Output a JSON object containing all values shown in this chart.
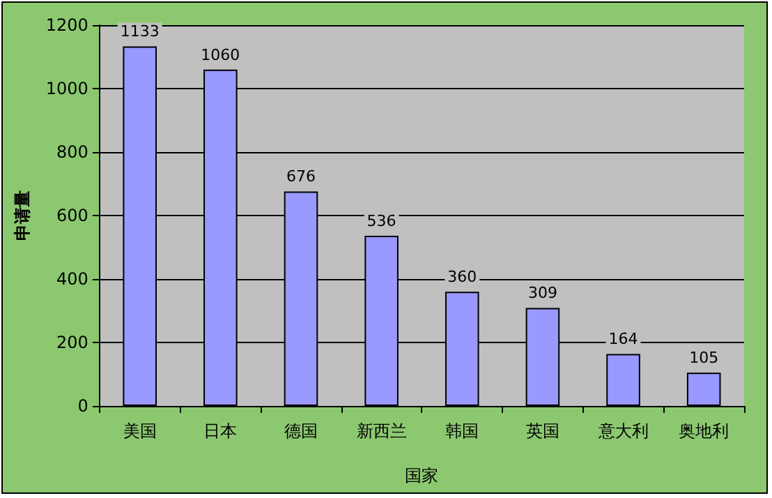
{
  "chart_data": {
    "type": "bar",
    "xlabel": "国家",
    "ylabel": "申请量",
    "categories": [
      "美国",
      "日本",
      "德国",
      "新西兰",
      "韩国",
      "英国",
      "意大利",
      "奥地利"
    ],
    "values": [
      1133,
      1060,
      676,
      536,
      360,
      309,
      164,
      105
    ],
    "color": "#9999ff",
    "ylim": [
      0,
      1200
    ],
    "yticks": [
      0,
      200,
      400,
      600,
      800,
      1000,
      1200
    ],
    "grid": "y",
    "data_labels": true
  }
}
